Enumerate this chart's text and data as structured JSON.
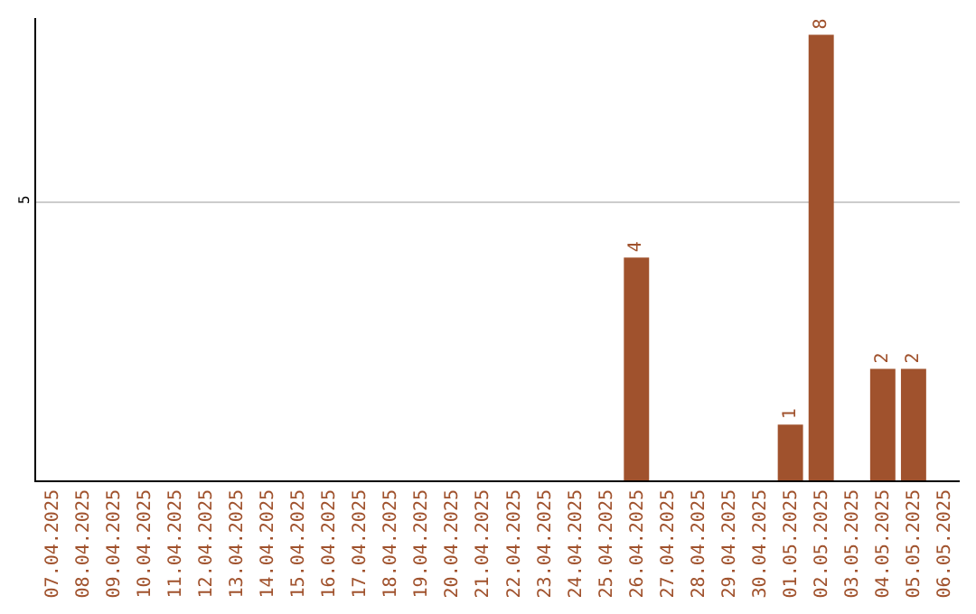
{
  "chart_data": {
    "type": "bar",
    "categories": [
      "07.04.2025",
      "08.04.2025",
      "09.04.2025",
      "10.04.2025",
      "11.04.2025",
      "12.04.2025",
      "13.04.2025",
      "14.04.2025",
      "15.04.2025",
      "16.04.2025",
      "17.04.2025",
      "18.04.2025",
      "19.04.2025",
      "20.04.2025",
      "21.04.2025",
      "22.04.2025",
      "23.04.2025",
      "24.04.2025",
      "25.04.2025",
      "26.04.2025",
      "27.04.2025",
      "28.04.2025",
      "29.04.2025",
      "30.04.2025",
      "01.05.2025",
      "02.05.2025",
      "03.05.2025",
      "04.05.2025",
      "05.05.2025",
      "06.05.2025"
    ],
    "values": [
      null,
      null,
      null,
      null,
      null,
      null,
      null,
      null,
      null,
      null,
      null,
      null,
      null,
      null,
      null,
      null,
      null,
      null,
      null,
      4,
      null,
      null,
      null,
      null,
      1,
      8,
      null,
      2,
      2,
      null
    ],
    "data_labels": true,
    "color": "#a0522d",
    "ylim": [
      0,
      8.3
    ],
    "yticks": [
      5
    ],
    "grid": "y"
  }
}
